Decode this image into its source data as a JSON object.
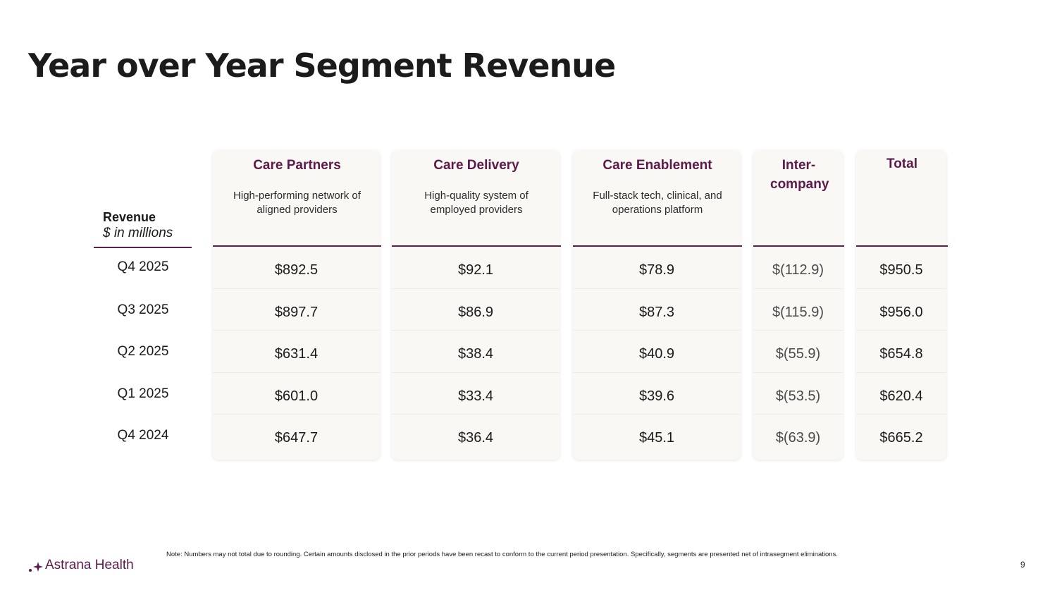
{
  "title": "Year over Year Segment Revenue",
  "revenue_label": "Revenue",
  "revenue_unit": "$ in millions",
  "periods": [
    "Q4 2025",
    "Q3 2025",
    "Q2 2025",
    "Q1 2025",
    "Q4 2024"
  ],
  "columns": [
    {
      "name": "Care Partners",
      "desc": "High-performing network of aligned providers",
      "values": [
        "$892.5",
        "$897.7",
        "$631.4",
        "$601.0",
        "$647.7"
      ]
    },
    {
      "name": "Care Delivery",
      "desc": "High-quality system of employed providers",
      "values": [
        "$92.1",
        "$86.9",
        "$38.4",
        "$33.4",
        "$36.4"
      ]
    },
    {
      "name": "Care Enablement",
      "desc": "Full-stack tech, clinical, and operations platform",
      "values": [
        "$78.9",
        "$87.3",
        "$40.9",
        "$39.6",
        "$45.1"
      ]
    },
    {
      "name": "Inter-company",
      "desc": "",
      "values": [
        "$(112.9)",
        "$(115.9)",
        "$(55.9)",
        "$(53.5)",
        "$(63.9)"
      ]
    },
    {
      "name": "Total",
      "desc": "",
      "values": [
        "$950.5",
        "$956.0",
        "$654.8",
        "$620.4",
        "$665.2"
      ]
    }
  ],
  "note": "Note: Numbers may not total due to rounding. Certain amounts disclosed in the prior periods have been recast to conform to the current period presentation. Specifically, segments are presented net of intrasegment eliminations.",
  "logo_text": "Astrana Health",
  "page_number": "9",
  "colors": {
    "accent": "#5c1a4a",
    "card_bg": "#faf8f4"
  }
}
